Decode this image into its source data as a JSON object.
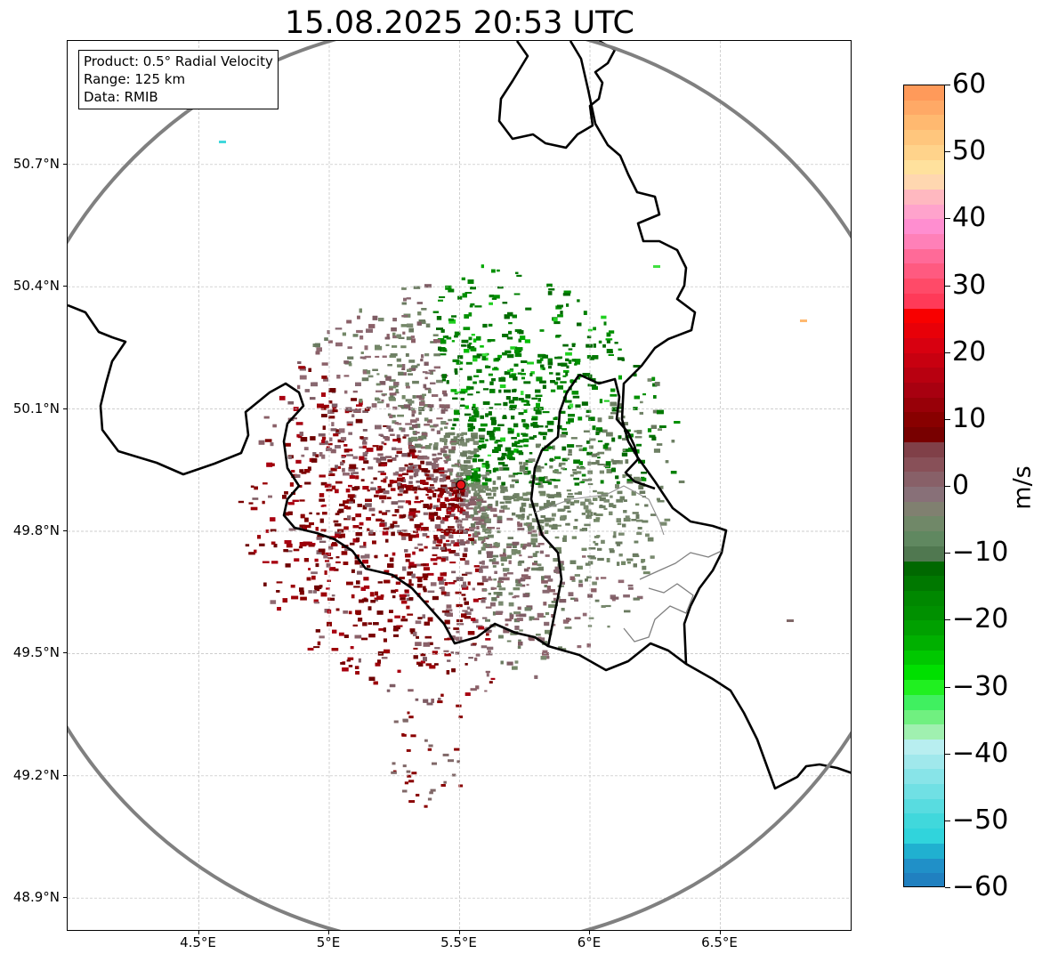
{
  "title": "15.08.2025 20:53 UTC",
  "info_box": {
    "product": "Product: 0.5° Radial Velocity",
    "range": "Range: 125 km",
    "data": "Data: RMIB"
  },
  "map": {
    "lat_ticks": [
      "50.7°N",
      "50.4°N",
      "50.1°N",
      "49.8°N",
      "49.5°N",
      "49.2°N",
      "48.9°N"
    ],
    "lon_ticks": [
      "4.5°E",
      "5°E",
      "5.5°E",
      "6°E",
      "6.5°E"
    ],
    "lat_values": [
      50.7,
      50.4,
      50.1,
      49.8,
      49.5,
      49.2,
      48.9
    ],
    "lon_values": [
      4.5,
      5.0,
      5.5,
      6.0,
      6.5
    ],
    "extent": {
      "lon_min": 4.0,
      "lon_max": 7.0,
      "lat_min": 48.8,
      "lat_max": 51.0
    },
    "radar_site": {
      "lon": 5.505,
      "lat": 49.914
    },
    "range_ring_km": 125,
    "radar_color": "#e8141a",
    "ring_color": "#808080",
    "grid_color": "#bdbdbd"
  },
  "colorbar": {
    "unit": "m/s",
    "ticks": [
      "60",
      "50",
      "40",
      "30",
      "20",
      "10",
      "0",
      "−10",
      "−20",
      "−30",
      "−40",
      "−50",
      "−60"
    ],
    "tick_values": [
      60,
      50,
      40,
      30,
      20,
      10,
      0,
      -10,
      -20,
      -30,
      -40,
      -50,
      -60
    ],
    "min": -60,
    "max": 60,
    "colors_top_to_bottom": [
      "#ff9a5a",
      "#ffa966",
      "#ffb970",
      "#ffc67d",
      "#ffd38b",
      "#ffe19d",
      "#ffd7b0",
      "#ffb8c0",
      "#ffa3cc",
      "#ff8ed0",
      "#ff80b8",
      "#ff6a98",
      "#ff5a80",
      "#ff4a68",
      "#ff3a58",
      "#f80000",
      "#e80008",
      "#d80010",
      "#c80010",
      "#b80010",
      "#a80010",
      "#980008",
      "#880000",
      "#780000",
      "#804048",
      "#885058",
      "#886068",
      "#887078",
      "#808070",
      "#708868",
      "#608860",
      "#507850",
      "#006800",
      "#007800",
      "#008800",
      "#009000",
      "#00a000",
      "#00b000",
      "#00c800",
      "#00e000",
      "#20f020",
      "#40f060",
      "#70f080",
      "#a0f0b0",
      "#b8eef0",
      "#a0e8ec",
      "#88e4e8",
      "#70e0e4",
      "#58dce0",
      "#40d8dc",
      "#30d4dc",
      "#20b0d0",
      "#2090c8",
      "#2080c0"
    ]
  }
}
